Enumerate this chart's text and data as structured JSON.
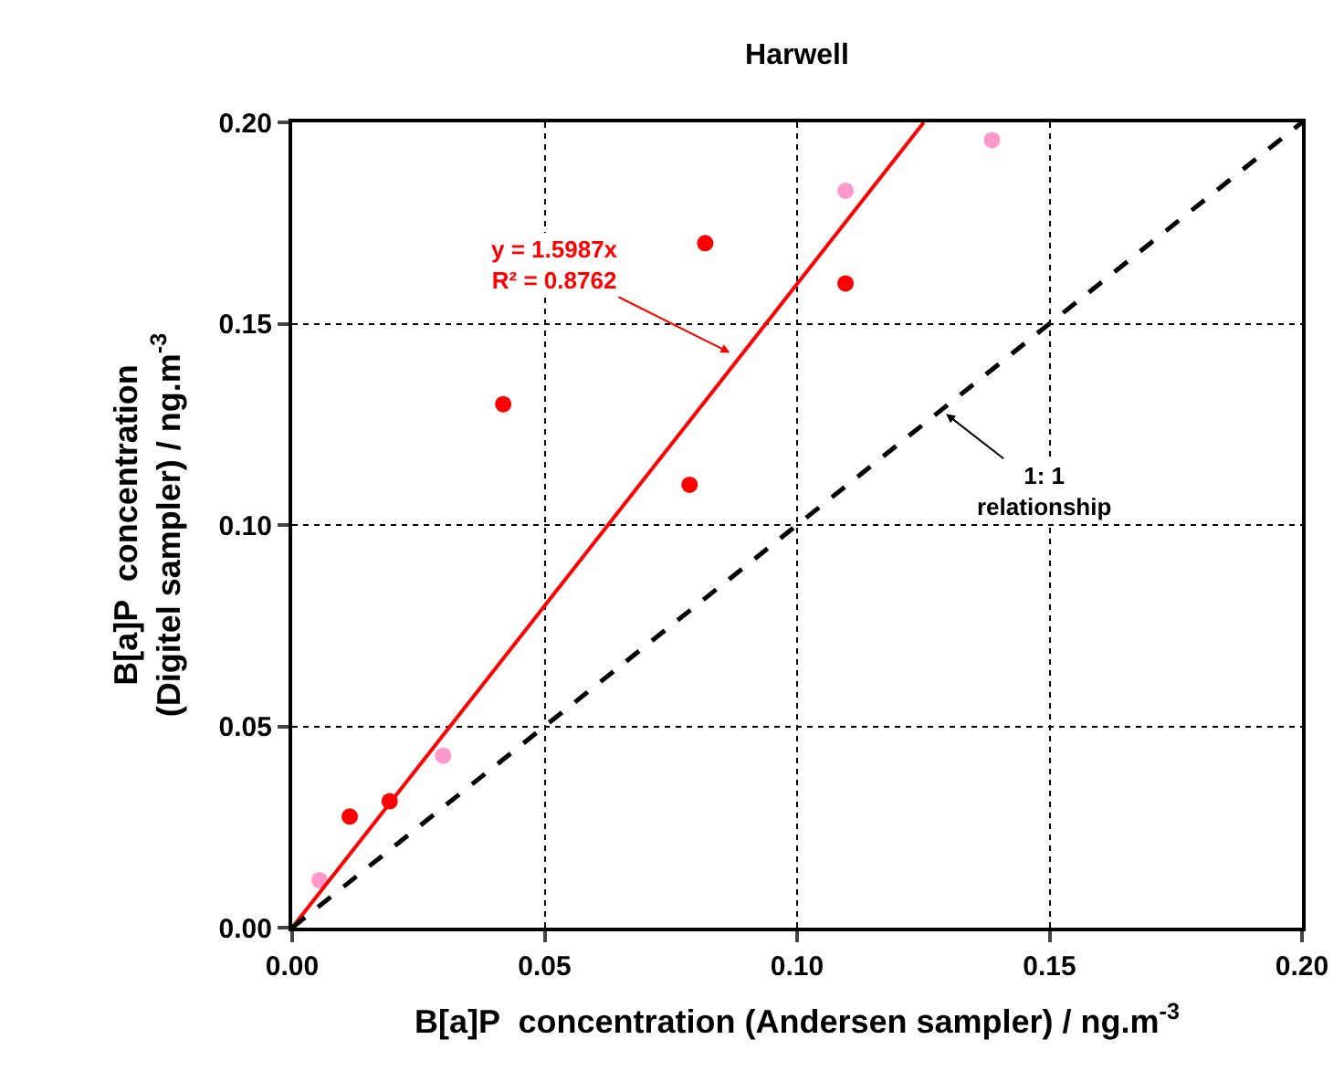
{
  "chart_data": {
    "type": "scatter",
    "title": "Harwell",
    "xlabel": "B[a]P  concentration (Andersen sampler) / ng.m$^{-3}$",
    "ylabel": "B[a]P  concentration\n(Digitel sampler) / ng.m$^{-3}$",
    "xlim": [
      0,
      0.2
    ],
    "ylim": [
      0,
      0.2
    ],
    "xticks": [
      {
        "value": 0,
        "label": "0.00"
      },
      {
        "value": 0.05,
        "label": "0.05"
      },
      {
        "value": 0.1,
        "label": "0.10"
      },
      {
        "value": 0.15,
        "label": "0.15"
      },
      {
        "value": 0.2,
        "label": "0.20"
      }
    ],
    "yticks": [
      {
        "value": 0,
        "label": "0.00"
      },
      {
        "value": 0.05,
        "label": "0.05"
      },
      {
        "value": 0.1,
        "label": "0.10"
      },
      {
        "value": 0.15,
        "label": "0.15"
      },
      {
        "value": 0.2,
        "label": "0.20"
      }
    ],
    "grid": true,
    "marker": "circle",
    "series": [
      {
        "color": "#ff0000",
        "x": [
          0.0114,
          0.0193,
          0.0418,
          0.0787,
          0.0818,
          0.1096
        ],
        "values": [
          0.0276,
          0.0314,
          0.13,
          0.11,
          0.17,
          0.16
        ]
      },
      {
        "color": "#ff99cc",
        "x": [
          0.0054,
          0.0299,
          0.1096,
          0.1386
        ],
        "values": [
          0.0118,
          0.0427,
          0.183,
          0.1956
        ]
      },
      {
        "type": "line",
        "color": "#ff0000",
        "line_style": "solid",
        "marker": "none",
        "x": [
          0,
          0.1251
        ],
        "values": [
          0,
          0.2
        ]
      },
      {
        "type": "line",
        "color": "#000000",
        "line_style": "dashed",
        "marker": "none",
        "x": [
          0,
          0.2
        ],
        "values": [
          0,
          0.2
        ]
      }
    ],
    "annotations": [
      {
        "text": "y = 1.5987x\nR² = 0.8762",
        "x": 0.0867,
        "y": 0.1428
      },
      {
        "text": "1: 1\nrelationship",
        "x": 0.1295,
        "y": 0.1276
      }
    ]
  }
}
